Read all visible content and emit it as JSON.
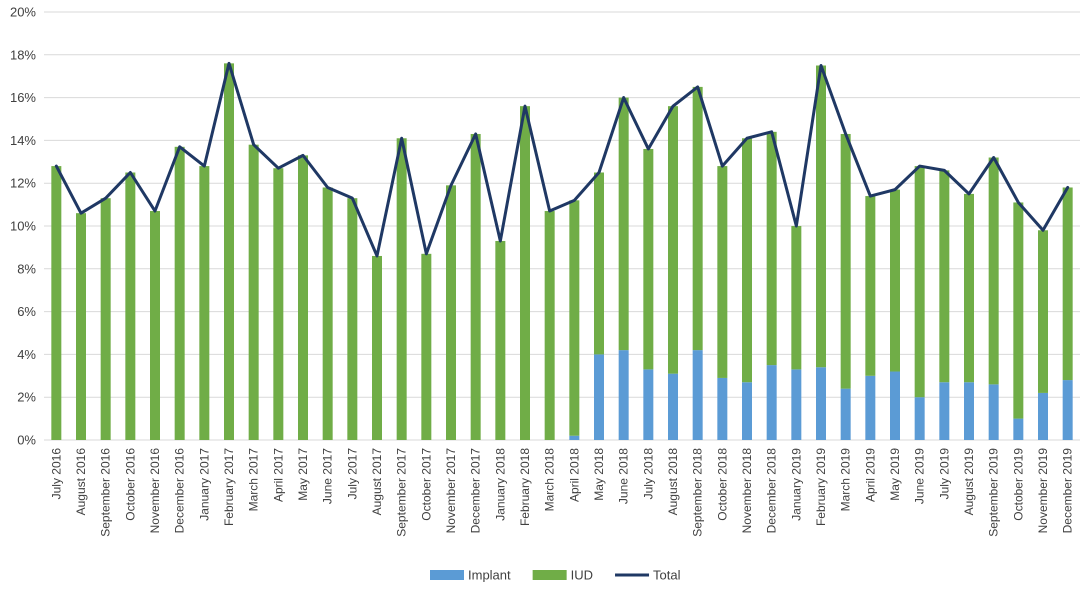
{
  "chart_data": {
    "type": "bar",
    "stacked": true,
    "categories": [
      "July 2016",
      "August 2016",
      "September 2016",
      "October 2016",
      "November 2016",
      "December 2016",
      "January 2017",
      "February 2017",
      "March 2017",
      "April 2017",
      "May 2017",
      "June 2017",
      "July 2017",
      "August 2017",
      "September 2017",
      "October 2017",
      "November 2017",
      "December 2017",
      "January 2018",
      "February 2018",
      "March 2018",
      "April 2018",
      "May 2018",
      "June 2018",
      "July 2018",
      "August 2018",
      "September 2018",
      "October 2018",
      "November 2018",
      "December 2018",
      "January 2019",
      "February 2019",
      "March 2019",
      "April 2019",
      "May 2019",
      "June 2019",
      "July 2019",
      "August 2019",
      "September 2019",
      "October 2019",
      "November 2019",
      "December 2019"
    ],
    "series": [
      {
        "name": "Implant",
        "kind": "bar",
        "color": "#5b9bd5",
        "values": [
          0,
          0,
          0,
          0,
          0,
          0,
          0,
          0,
          0,
          0,
          0,
          0,
          0,
          0,
          0,
          0,
          0,
          0,
          0,
          0,
          0,
          0.2,
          4.0,
          4.2,
          3.3,
          3.1,
          4.2,
          2.9,
          2.7,
          3.5,
          3.3,
          3.4,
          2.4,
          3.0,
          3.2,
          2.0,
          2.7,
          2.7,
          2.6,
          1.0,
          2.2,
          2.8
        ]
      },
      {
        "name": "IUD",
        "kind": "bar",
        "color": "#70ad47",
        "values": [
          12.8,
          10.6,
          11.3,
          12.5,
          10.7,
          13.7,
          12.8,
          17.6,
          13.8,
          12.7,
          13.3,
          11.8,
          11.3,
          8.6,
          14.1,
          8.7,
          11.9,
          14.3,
          9.3,
          15.6,
          10.7,
          11.0,
          8.5,
          11.8,
          10.3,
          12.5,
          12.3,
          9.9,
          11.4,
          10.9,
          6.7,
          14.1,
          11.9,
          8.4,
          8.5,
          10.8,
          9.9,
          8.8,
          10.6,
          10.1,
          7.6,
          9.0
        ]
      },
      {
        "name": "Total",
        "kind": "line",
        "color": "#1f3864",
        "values": [
          12.8,
          10.6,
          11.3,
          12.5,
          10.7,
          13.7,
          12.8,
          17.6,
          13.8,
          12.7,
          13.3,
          11.8,
          11.3,
          8.6,
          14.1,
          8.7,
          11.9,
          14.3,
          9.3,
          15.6,
          10.7,
          11.2,
          12.5,
          16.0,
          13.6,
          15.6,
          16.5,
          12.8,
          14.1,
          14.4,
          10.0,
          17.5,
          14.3,
          11.4,
          11.7,
          12.8,
          12.6,
          11.5,
          13.2,
          11.1,
          9.8,
          11.8
        ]
      }
    ],
    "yticks": [
      "0%",
      "2%",
      "4%",
      "6%",
      "8%",
      "10%",
      "12%",
      "14%",
      "16%",
      "18%",
      "20%"
    ],
    "ylim": [
      0,
      20
    ],
    "grid": true,
    "legend_position": "bottom-center"
  }
}
